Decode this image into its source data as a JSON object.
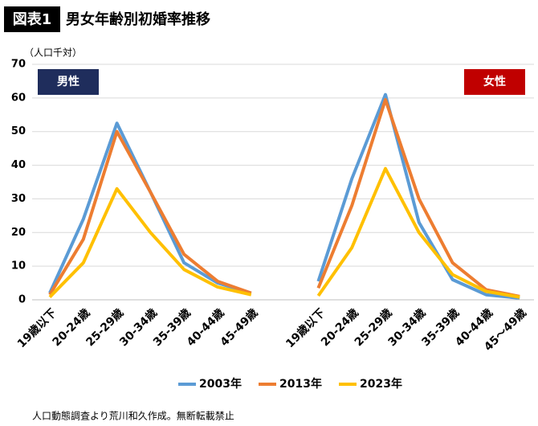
{
  "chart_data": {
    "type": "line",
    "badge": "図表1",
    "title": "男女年齢別初婚率推移",
    "y_label": "（人口千対）",
    "ylim": [
      0,
      70
    ],
    "yticks": [
      0,
      10,
      20,
      30,
      40,
      50,
      60,
      70
    ],
    "grid": true,
    "series": [
      {
        "name": "2003年",
        "color": "#5b9bd5"
      },
      {
        "name": "2013年",
        "color": "#ed7d31"
      },
      {
        "name": "2023年",
        "color": "#ffc000"
      }
    ],
    "panels": [
      {
        "label": "男性",
        "label_color": "#1f2d5c",
        "categories": [
          "19歳以下",
          "20-24歳",
          "25-29歳",
          "30-34歳",
          "35-39歳",
          "40-44歳",
          "45-49歳"
        ],
        "values": [
          [
            2,
            24,
            52.5,
            32,
            11,
            5,
            2
          ],
          [
            1.5,
            18,
            50,
            32,
            13.5,
            5.5,
            2
          ],
          [
            0.8,
            11,
            33,
            20,
            9,
            3.8,
            1.5
          ]
        ]
      },
      {
        "label": "女性",
        "label_color": "#c00000",
        "categories": [
          "19歳以下",
          "20-24歳",
          "25-29歳",
          "30-34歳",
          "35-39歳",
          "40-44歳",
          "45～49歳"
        ],
        "values": [
          [
            5.5,
            36,
            61,
            23,
            6,
            1.5,
            0.5
          ],
          [
            3.5,
            28,
            59.5,
            30,
            11,
            3,
            1
          ],
          [
            1.2,
            15.5,
            39,
            20,
            7.5,
            2.5,
            0.8
          ]
        ]
      }
    ],
    "note": "人口動態調査より荒川和久作成。無断転載禁止"
  }
}
